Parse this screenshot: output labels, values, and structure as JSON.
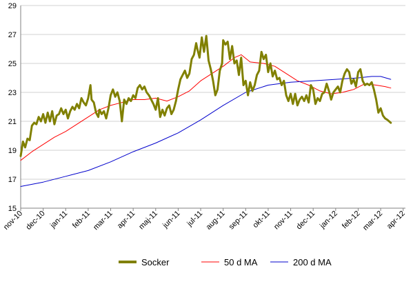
{
  "chart_data": {
    "type": "line",
    "title": "",
    "xlabel": "",
    "ylabel": "",
    "ylim": [
      15,
      29
    ],
    "yticks": [
      15,
      17,
      19,
      21,
      23,
      25,
      27,
      29
    ],
    "grid": "horizontal",
    "legend_position": "bottom",
    "x_tick_labels": [
      "nov-10",
      "dec-10",
      "jan-11",
      "feb-11",
      "mar-11",
      "apr-11",
      "maj-11",
      "jun-11",
      "jul-11",
      "aug-11",
      "sep-11",
      "okt-11",
      "nov-11",
      "dec-11",
      "jan-12",
      "feb-12",
      "mar-12",
      "apr-12"
    ],
    "x_range_months": [
      0,
      17.1
    ],
    "series": [
      {
        "name": "Socker",
        "color": "#808000",
        "width": 3,
        "points": [
          [
            0.0,
            18.6
          ],
          [
            0.1,
            19.6
          ],
          [
            0.2,
            19.2
          ],
          [
            0.3,
            19.8
          ],
          [
            0.4,
            19.7
          ],
          [
            0.5,
            20.7
          ],
          [
            0.6,
            20.9
          ],
          [
            0.7,
            20.8
          ],
          [
            0.8,
            21.3
          ],
          [
            0.9,
            21.0
          ],
          [
            1.0,
            21.5
          ],
          [
            1.1,
            20.9
          ],
          [
            1.2,
            21.6
          ],
          [
            1.3,
            21.0
          ],
          [
            1.4,
            21.7
          ],
          [
            1.5,
            20.8
          ],
          [
            1.6,
            21.4
          ],
          [
            1.7,
            21.5
          ],
          [
            1.8,
            21.9
          ],
          [
            1.9,
            21.5
          ],
          [
            2.0,
            21.8
          ],
          [
            2.1,
            21.2
          ],
          [
            2.2,
            21.7
          ],
          [
            2.3,
            22.0
          ],
          [
            2.4,
            21.8
          ],
          [
            2.5,
            22.2
          ],
          [
            2.6,
            21.9
          ],
          [
            2.7,
            22.6
          ],
          [
            2.8,
            22.3
          ],
          [
            2.9,
            22.1
          ],
          [
            3.0,
            22.6
          ],
          [
            3.1,
            23.5
          ],
          [
            3.15,
            22.5
          ],
          [
            3.25,
            22.3
          ],
          [
            3.35,
            21.6
          ],
          [
            3.45,
            21.3
          ],
          [
            3.5,
            21.8
          ],
          [
            3.6,
            21.5
          ],
          [
            3.7,
            21.7
          ],
          [
            3.8,
            21.2
          ],
          [
            3.9,
            21.9
          ],
          [
            4.0,
            22.8
          ],
          [
            4.1,
            23.2
          ],
          [
            4.2,
            22.7
          ],
          [
            4.3,
            23.0
          ],
          [
            4.4,
            22.4
          ],
          [
            4.5,
            21.0
          ],
          [
            4.6,
            22.5
          ],
          [
            4.7,
            22.2
          ],
          [
            4.8,
            22.6
          ],
          [
            4.9,
            22.4
          ],
          [
            5.0,
            22.8
          ],
          [
            5.1,
            22.6
          ],
          [
            5.2,
            23.3
          ],
          [
            5.3,
            23.5
          ],
          [
            5.4,
            23.2
          ],
          [
            5.5,
            23.4
          ],
          [
            5.6,
            23.0
          ],
          [
            5.7,
            22.8
          ],
          [
            5.8,
            22.5
          ],
          [
            5.9,
            22.2
          ],
          [
            6.0,
            21.8
          ],
          [
            6.1,
            22.6
          ],
          [
            6.2,
            21.3
          ],
          [
            6.3,
            21.8
          ],
          [
            6.4,
            21.4
          ],
          [
            6.5,
            21.9
          ],
          [
            6.6,
            22.1
          ],
          [
            6.7,
            21.5
          ],
          [
            6.8,
            21.8
          ],
          [
            6.9,
            22.4
          ],
          [
            7.0,
            23.2
          ],
          [
            7.1,
            23.9
          ],
          [
            7.2,
            24.2
          ],
          [
            7.3,
            24.5
          ],
          [
            7.4,
            24.0
          ],
          [
            7.5,
            24.3
          ],
          [
            7.6,
            25.3
          ],
          [
            7.7,
            25.6
          ],
          [
            7.8,
            26.4
          ],
          [
            7.85,
            26.0
          ],
          [
            7.95,
            25.4
          ],
          [
            8.05,
            26.8
          ],
          [
            8.15,
            25.8
          ],
          [
            8.25,
            26.9
          ],
          [
            8.35,
            25.2
          ],
          [
            8.45,
            24.6
          ],
          [
            8.55,
            23.8
          ],
          [
            8.65,
            22.8
          ],
          [
            8.75,
            23.2
          ],
          [
            8.85,
            24.5
          ],
          [
            8.95,
            25.0
          ],
          [
            9.0,
            26.6
          ],
          [
            9.1,
            26.3
          ],
          [
            9.2,
            26.5
          ],
          [
            9.3,
            25.3
          ],
          [
            9.4,
            26.2
          ],
          [
            9.5,
            25.0
          ],
          [
            9.6,
            25.2
          ],
          [
            9.7,
            24.2
          ],
          [
            9.8,
            25.4
          ],
          [
            9.9,
            23.5
          ],
          [
            10.0,
            23.8
          ],
          [
            10.1,
            22.8
          ],
          [
            10.2,
            23.7
          ],
          [
            10.3,
            23.1
          ],
          [
            10.4,
            23.5
          ],
          [
            10.5,
            24.2
          ],
          [
            10.6,
            24.5
          ],
          [
            10.7,
            25.8
          ],
          [
            10.8,
            25.3
          ],
          [
            10.9,
            25.6
          ],
          [
            11.0,
            24.4
          ],
          [
            11.1,
            25.0
          ],
          [
            11.2,
            24.1
          ],
          [
            11.3,
            24.5
          ],
          [
            11.4,
            23.9
          ],
          [
            11.5,
            24.0
          ],
          [
            11.6,
            23.5
          ],
          [
            11.7,
            23.8
          ],
          [
            11.8,
            22.8
          ],
          [
            11.9,
            22.4
          ],
          [
            12.0,
            22.9
          ],
          [
            12.1,
            22.2
          ],
          [
            12.2,
            22.9
          ],
          [
            12.3,
            22.1
          ],
          [
            12.4,
            22.5
          ],
          [
            12.5,
            22.7
          ],
          [
            12.6,
            22.4
          ],
          [
            12.7,
            22.8
          ],
          [
            12.8,
            22.3
          ],
          [
            12.9,
            23.5
          ],
          [
            13.0,
            23.2
          ],
          [
            13.1,
            22.2
          ],
          [
            13.2,
            22.6
          ],
          [
            13.3,
            22.4
          ],
          [
            13.4,
            22.9
          ],
          [
            13.5,
            23.0
          ],
          [
            13.6,
            23.6
          ],
          [
            13.7,
            23.1
          ],
          [
            13.8,
            22.5
          ],
          [
            13.9,
            23.0
          ],
          [
            14.0,
            23.2
          ],
          [
            14.1,
            23.4
          ],
          [
            14.2,
            23.0
          ],
          [
            14.3,
            23.8
          ],
          [
            14.4,
            24.3
          ],
          [
            14.5,
            24.6
          ],
          [
            14.6,
            24.4
          ],
          [
            14.7,
            23.6
          ],
          [
            14.8,
            23.9
          ],
          [
            14.9,
            23.4
          ],
          [
            15.0,
            24.4
          ],
          [
            15.1,
            24.6
          ],
          [
            15.2,
            23.8
          ],
          [
            15.3,
            23.5
          ],
          [
            15.4,
            23.6
          ],
          [
            15.5,
            23.5
          ],
          [
            15.6,
            23.7
          ],
          [
            15.7,
            23.2
          ],
          [
            15.8,
            22.5
          ],
          [
            15.9,
            21.6
          ],
          [
            16.0,
            21.9
          ],
          [
            16.1,
            21.4
          ],
          [
            16.2,
            21.2
          ],
          [
            16.3,
            21.1
          ],
          [
            16.45,
            20.9
          ]
        ]
      },
      {
        "name": "50 d MA",
        "color": "#ff0000",
        "width": 1,
        "points": [
          [
            0.0,
            18.3
          ],
          [
            0.5,
            18.9
          ],
          [
            1.0,
            19.4
          ],
          [
            1.5,
            19.9
          ],
          [
            2.0,
            20.3
          ],
          [
            2.5,
            20.8
          ],
          [
            3.0,
            21.3
          ],
          [
            3.5,
            21.8
          ],
          [
            4.0,
            22.1
          ],
          [
            4.5,
            22.3
          ],
          [
            5.0,
            22.5
          ],
          [
            5.5,
            22.5
          ],
          [
            6.0,
            22.6
          ],
          [
            6.5,
            22.4
          ],
          [
            7.0,
            22.7
          ],
          [
            7.5,
            23.1
          ],
          [
            8.0,
            23.8
          ],
          [
            8.5,
            24.3
          ],
          [
            9.0,
            24.8
          ],
          [
            9.5,
            25.4
          ],
          [
            9.8,
            25.6
          ],
          [
            10.2,
            25.1
          ],
          [
            10.8,
            25.0
          ],
          [
            11.3,
            24.8
          ],
          [
            11.8,
            24.3
          ],
          [
            12.3,
            23.8
          ],
          [
            12.8,
            23.5
          ],
          [
            13.3,
            23.1
          ],
          [
            13.8,
            22.9
          ],
          [
            14.3,
            23.0
          ],
          [
            14.8,
            23.2
          ],
          [
            15.3,
            23.6
          ],
          [
            15.8,
            23.5
          ],
          [
            16.2,
            23.4
          ],
          [
            16.45,
            23.3
          ]
        ]
      },
      {
        "name": "200 d MA",
        "color": "#0000cc",
        "width": 1,
        "points": [
          [
            0.0,
            16.5
          ],
          [
            1.0,
            16.8
          ],
          [
            2.0,
            17.2
          ],
          [
            3.0,
            17.6
          ],
          [
            4.0,
            18.2
          ],
          [
            5.0,
            18.9
          ],
          [
            6.0,
            19.5
          ],
          [
            7.0,
            20.2
          ],
          [
            8.0,
            21.1
          ],
          [
            9.0,
            22.1
          ],
          [
            10.0,
            23.0
          ],
          [
            11.0,
            23.5
          ],
          [
            12.0,
            23.7
          ],
          [
            13.0,
            23.8
          ],
          [
            14.0,
            23.9
          ],
          [
            15.0,
            24.0
          ],
          [
            15.6,
            24.1
          ],
          [
            16.0,
            24.1
          ],
          [
            16.45,
            23.9
          ]
        ]
      }
    ]
  }
}
